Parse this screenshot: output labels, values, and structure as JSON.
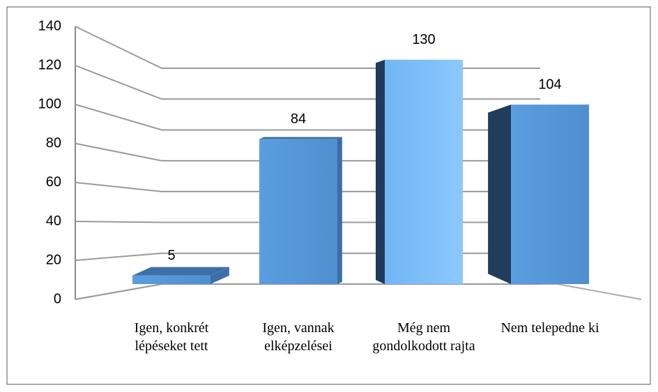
{
  "chart_data": {
    "type": "bar3d",
    "categories": [
      "Igen, konkrét lépéseket tett",
      "Igen, vannak elképzelései",
      "Még nem gondolkodott rajta",
      "Nem telepedne ki"
    ],
    "values": [
      5,
      84,
      130,
      104
    ],
    "color": "#5b9bd5",
    "ylim": [
      0,
      140
    ],
    "yticks": [
      0,
      20,
      40,
      60,
      80,
      100,
      120,
      140
    ],
    "grid": true
  }
}
